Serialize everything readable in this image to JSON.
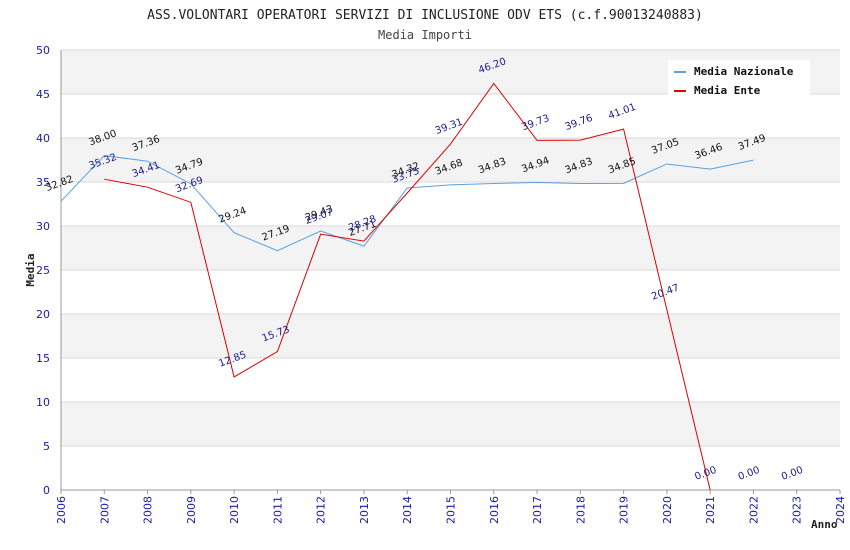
{
  "chart_data": {
    "type": "line",
    "title": "ASS.VOLONTARI OPERATORI SERVIZI DI INCLUSIONE ODV ETS (c.f.90013240883)",
    "subtitle": "Media Importi",
    "xlabel": "Anno",
    "ylabel": "Media",
    "xlim": [
      2006,
      2024
    ],
    "ylim": [
      0,
      50
    ],
    "y_ticks": [
      "0",
      "5",
      "10",
      "15",
      "20",
      "25",
      "30",
      "35",
      "40",
      "45",
      "50"
    ],
    "x_ticks": [
      "2006",
      "2007",
      "2008",
      "2009",
      "2010",
      "2011",
      "2012",
      "2013",
      "2014",
      "2015",
      "2016",
      "2017",
      "2018",
      "2019",
      "2020",
      "2021",
      "2022",
      "2023",
      "2024"
    ],
    "legend_position": "top-right",
    "grid": true,
    "series": [
      {
        "name": "Media Nazionale",
        "color": "#5aa0dc",
        "x": [
          2006,
          2007,
          2008,
          2009,
          2010,
          2011,
          2012,
          2013,
          2014,
          2015,
          2016,
          2017,
          2018,
          2019,
          2020,
          2021,
          2022
        ],
        "values": [
          32.82,
          38.0,
          37.36,
          34.79,
          29.24,
          27.19,
          29.43,
          27.71,
          34.32,
          34.68,
          34.83,
          34.94,
          34.83,
          34.85,
          37.05,
          36.46,
          37.49
        ],
        "labels": [
          "32.82",
          "38.00",
          "37.36",
          "34.79",
          "29.24",
          "27.19",
          "29.43",
          "27.71",
          "34.32",
          "34.68",
          "34.83",
          "34.94",
          "34.83",
          "34.85",
          "37.05",
          "36.46",
          "37.49"
        ]
      },
      {
        "name": "Media Ente",
        "color": "#e00000",
        "x": [
          2007,
          2008,
          2009,
          2010,
          2011,
          2012,
          2013,
          2014,
          2015,
          2016,
          2017,
          2018,
          2019,
          2020,
          2021,
          2022,
          2023
        ],
        "values": [
          35.32,
          34.41,
          32.69,
          12.85,
          15.73,
          29.07,
          28.28,
          33.75,
          39.31,
          46.2,
          39.73,
          39.76,
          41.01,
          20.47,
          0.0,
          0.0,
          0.0
        ],
        "labels": [
          "35.32",
          "34.41",
          "32.69",
          "12.85",
          "15.73",
          "29.07",
          "28.28",
          "33.75",
          "39.31",
          "46.20",
          "39.73",
          "39.76",
          "41.01",
          "20.47",
          "0.00",
          "0.00",
          "0.00"
        ],
        "line_until": 2021
      }
    ]
  }
}
